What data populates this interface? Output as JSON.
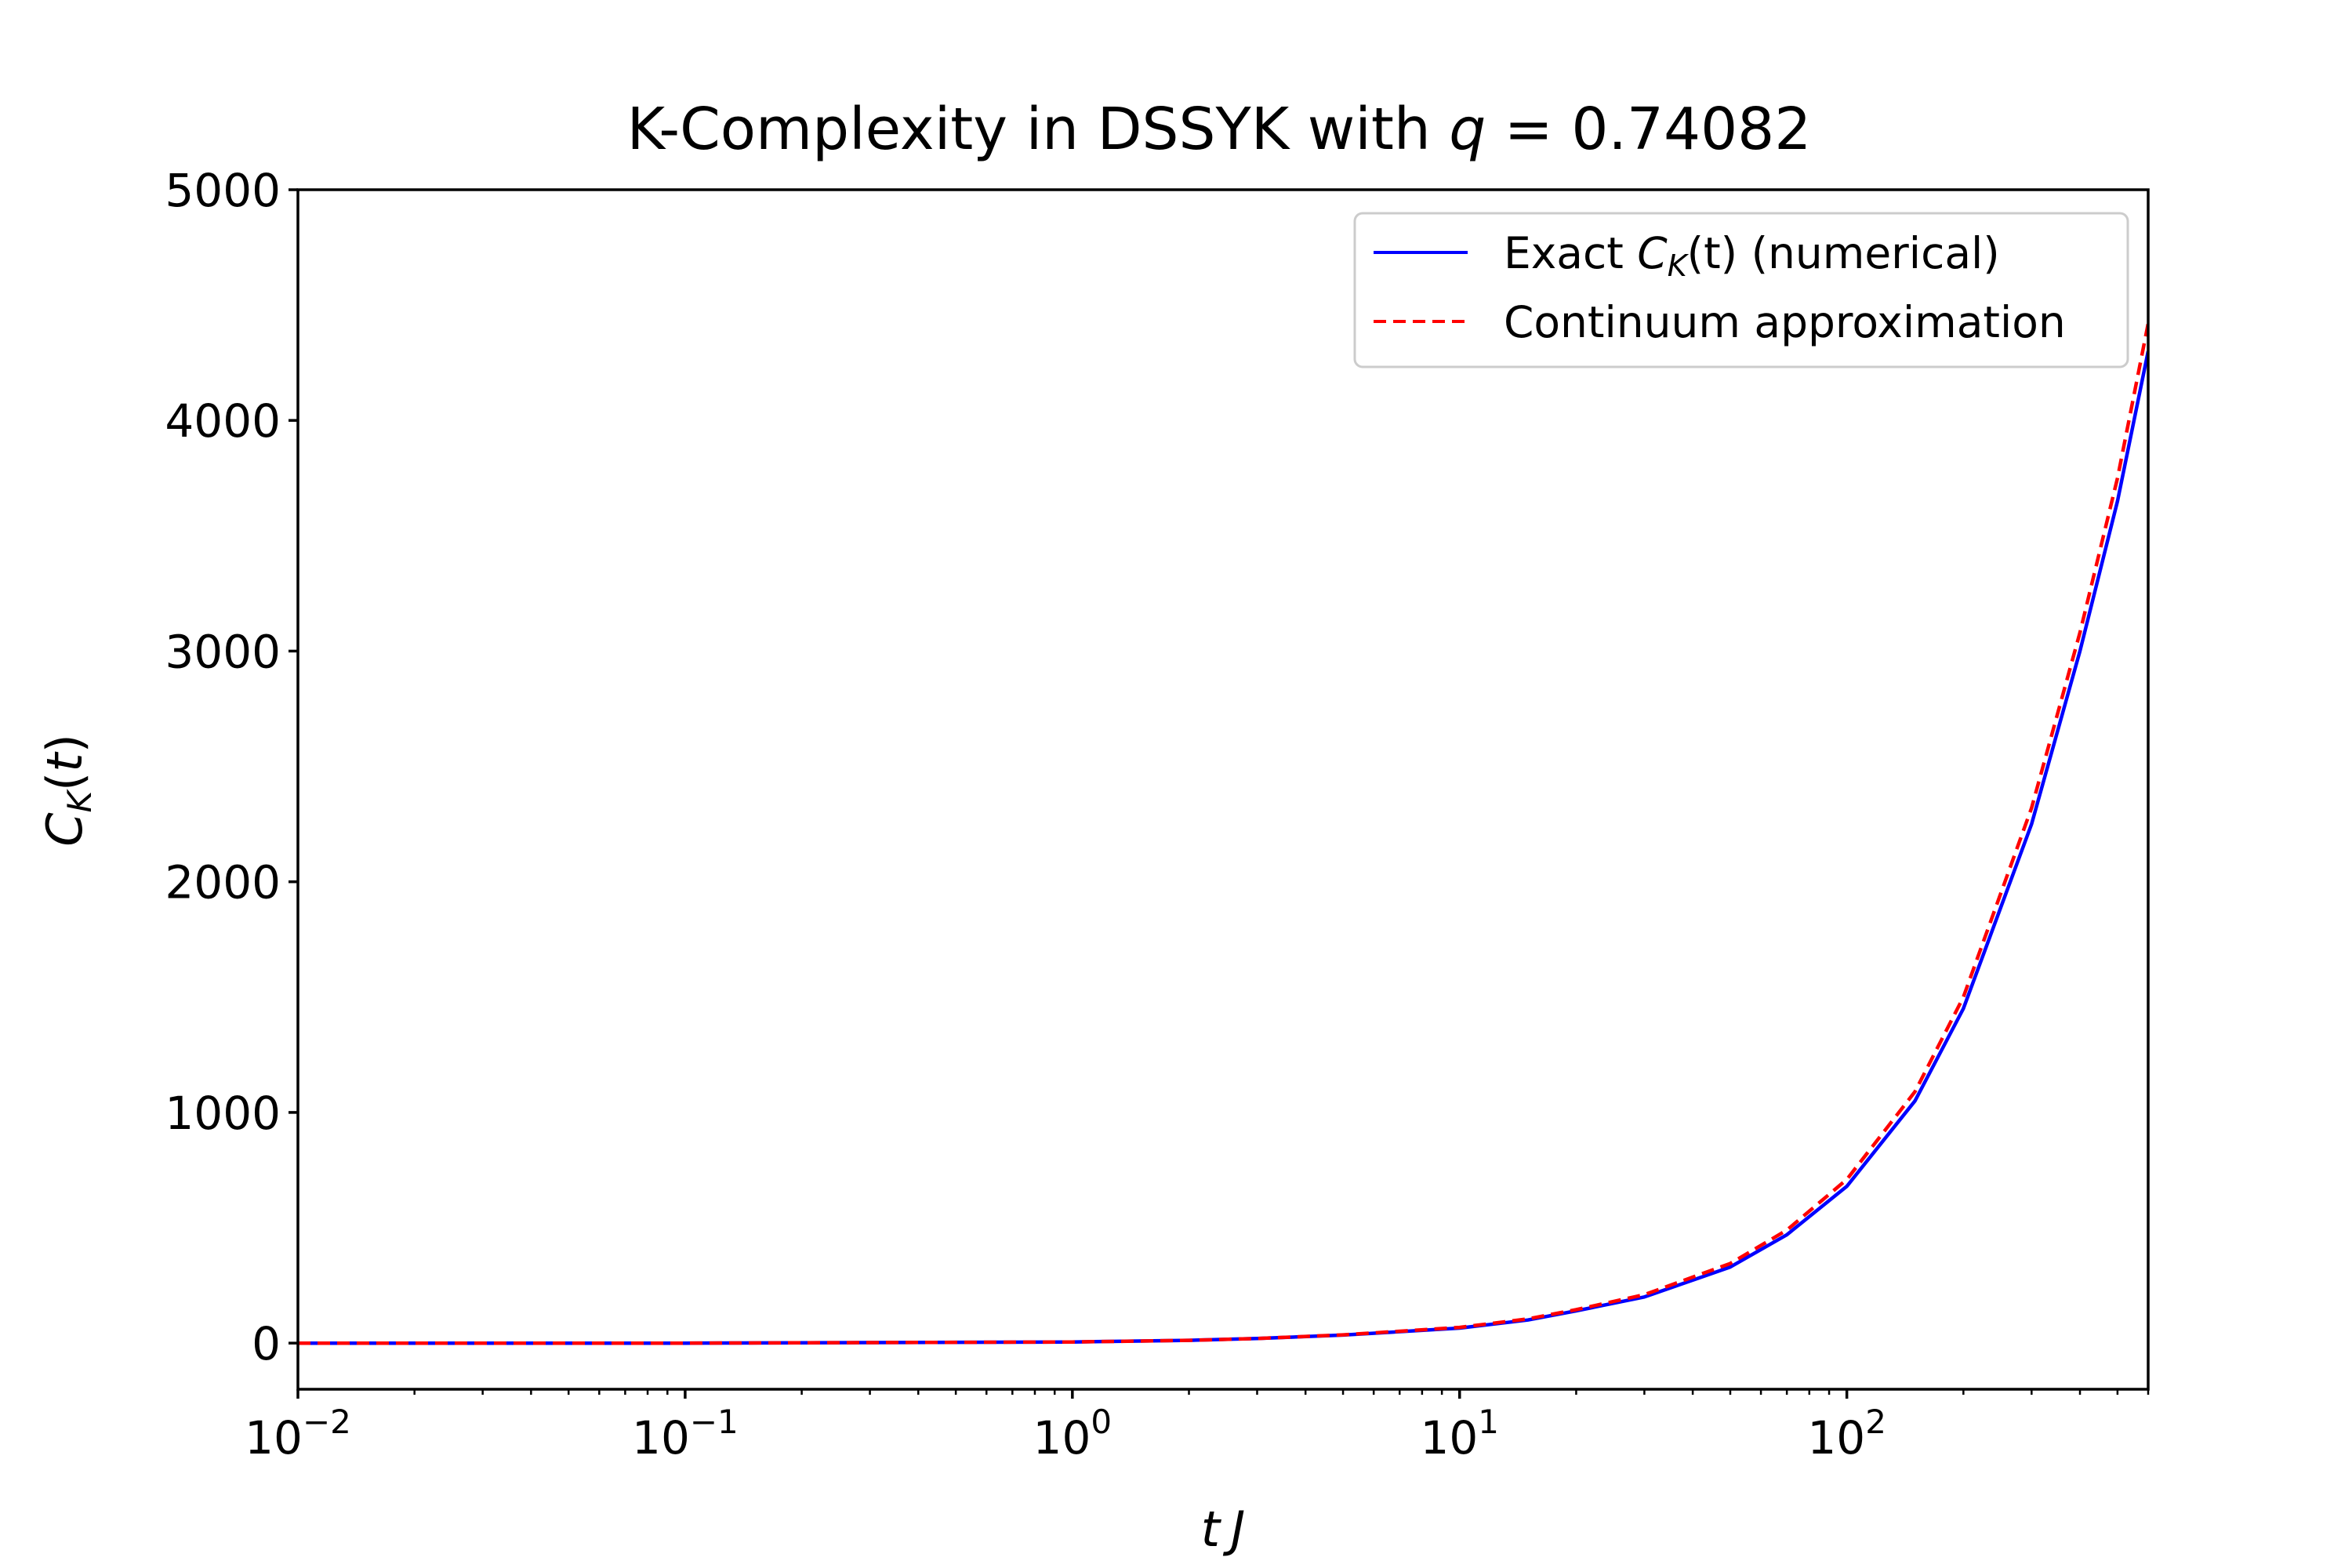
{
  "chart_data": {
    "type": "line",
    "title": "K-Complexity in DSSYK with q = 0.74082",
    "title_parts": {
      "prefix": "K-Complexity in DSSYK with ",
      "variable": "q",
      "equals": " = ",
      "value": "0.74082"
    },
    "xlabel": "t J",
    "ylabel": "C_K(t)",
    "x_scale": "log",
    "xlim": [
      0.01,
      600
    ],
    "ylim": [
      -200,
      5000
    ],
    "x_ticks": [
      {
        "value": 0.01,
        "base": "10",
        "exp": "−2"
      },
      {
        "value": 0.1,
        "base": "10",
        "exp": "−1"
      },
      {
        "value": 1,
        "base": "10",
        "exp": "0"
      },
      {
        "value": 10,
        "base": "10",
        "exp": "1"
      },
      {
        "value": 100,
        "base": "10",
        "exp": "2"
      }
    ],
    "y_ticks": [
      {
        "value": 0,
        "label": "0"
      },
      {
        "value": 1000,
        "label": "1000"
      },
      {
        "value": 2000,
        "label": "2000"
      },
      {
        "value": 3000,
        "label": "3000"
      },
      {
        "value": 4000,
        "label": "4000"
      },
      {
        "value": 5000,
        "label": "5000"
      }
    ],
    "legend_position": "top-right",
    "series": [
      {
        "name": "Exact C_K(t) (numerical)",
        "legend_parts": {
          "prefix": "Exact ",
          "symbol": "C",
          "sub": "K",
          "arg": "(t)",
          "suffix": " (numerical)"
        },
        "color": "#0000ff",
        "style": "solid",
        "x": [
          0.01,
          0.1,
          1,
          2,
          3,
          5,
          10,
          15,
          20,
          30,
          50,
          70,
          100,
          150,
          200,
          300,
          400,
          500,
          600
        ],
        "y": [
          0,
          0,
          5,
          12,
          20,
          35,
          65,
          100,
          140,
          200,
          330,
          470,
          680,
          1050,
          1450,
          2250,
          3000,
          3650,
          4300
        ]
      },
      {
        "name": "Continuum approximation",
        "color": "#ff0000",
        "style": "dashed",
        "x": [
          0.01,
          0.1,
          1,
          2,
          3,
          5,
          10,
          15,
          20,
          30,
          50,
          70,
          100,
          150,
          200,
          300,
          400,
          500,
          600
        ],
        "y": [
          0,
          0,
          5,
          12,
          20,
          36,
          68,
          105,
          145,
          210,
          345,
          490,
          710,
          1090,
          1500,
          2320,
          3080,
          3750,
          4420
        ]
      }
    ]
  }
}
